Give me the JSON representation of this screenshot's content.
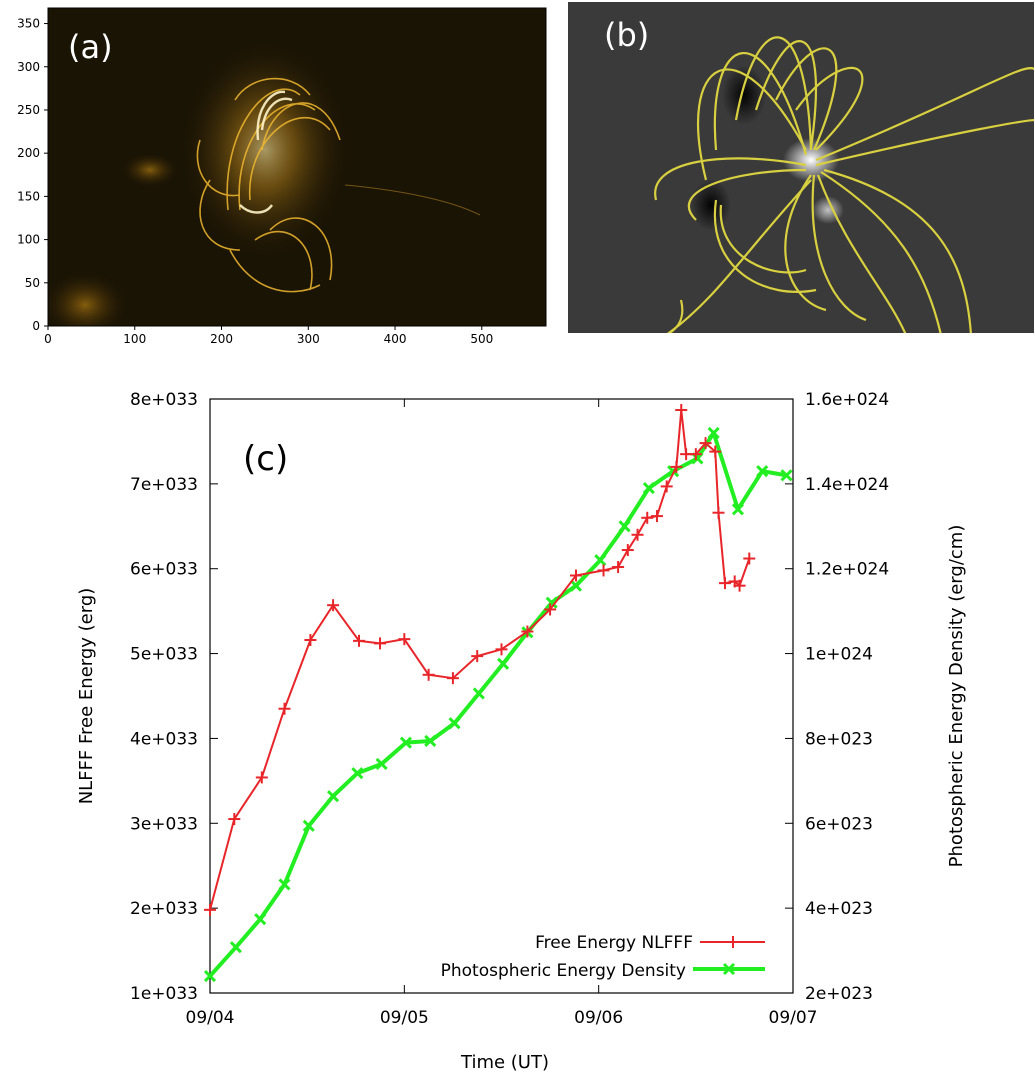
{
  "panel_a": {
    "label": "(a)",
    "x_ticks": [
      "0",
      "100",
      "200",
      "300",
      "400",
      "500"
    ],
    "y_ticks": [
      "0",
      "50",
      "100",
      "150",
      "200",
      "250",
      "300",
      "350"
    ]
  },
  "panel_b": {
    "label": "(b)"
  },
  "chart_data": {
    "type": "line",
    "panel_label": "(c)",
    "xlabel": "Time (UT)",
    "ylabel_left": "NLFFF Free Energy (erg)",
    "ylabel_right": "Photospheric Energy Density (erg/cm)",
    "x_ticks": [
      "09/04",
      "09/05",
      "09/06",
      "09/07"
    ],
    "xlim": [
      "09/04 00:00",
      "09/07 00:00"
    ],
    "y_left_ticks": [
      "1e+033",
      "2e+033",
      "3e+033",
      "4e+033",
      "5e+033",
      "6e+033",
      "7e+033",
      "8e+033"
    ],
    "y_left_lim": [
      1e+33,
      8e+33
    ],
    "y_right_ticks": [
      "2e+023",
      "4e+023",
      "6e+023",
      "8e+023",
      "1e+024",
      "1.2e+024",
      "1.4e+024",
      "1.6e+024"
    ],
    "y_right_lim": [
      2e+23,
      1.6e+24
    ],
    "legend_position": "bottom-right",
    "series": [
      {
        "name": "Free Energy NLFFF",
        "axis": "left",
        "color": "#e8262a",
        "marker": "+",
        "points": [
          [
            "09/04 00:00",
            1.98e+33
          ],
          [
            "09/04 03:00",
            3.05e+33
          ],
          [
            "09/04 06:24",
            3.54e+33
          ],
          [
            "09/04 09:12",
            4.35e+33
          ],
          [
            "09/04 12:24",
            5.16e+33
          ],
          [
            "09/04 15:12",
            5.57e+33
          ],
          [
            "09/04 18:24",
            5.15e+33
          ],
          [
            "09/04 21:00",
            5.12e+33
          ],
          [
            "09/05 00:00",
            5.17e+33
          ],
          [
            "09/05 03:00",
            4.75e+33
          ],
          [
            "09/05 06:00",
            4.71e+33
          ],
          [
            "09/05 09:00",
            4.97e+33
          ],
          [
            "09/05 12:00",
            5.05e+33
          ],
          [
            "09/05 15:12",
            5.26e+33
          ],
          [
            "09/05 18:00",
            5.52e+33
          ],
          [
            "09/05 21:12",
            5.92e+33
          ],
          [
            "09/06 00:36",
            5.98e+33
          ],
          [
            "09/06 02:24",
            6.02e+33
          ],
          [
            "09/06 03:36",
            6.22e+33
          ],
          [
            "09/06 04:48",
            6.4e+33
          ],
          [
            "09/06 06:00",
            6.6e+33
          ],
          [
            "09/06 07:12",
            6.62e+33
          ],
          [
            "09/06 08:24",
            6.97e+33
          ],
          [
            "09/06 09:36",
            7.2e+33
          ],
          [
            "09/06 10:12",
            7.87e+33
          ],
          [
            "09/06 10:48",
            7.35e+33
          ],
          [
            "09/06 12:00",
            7.35e+33
          ],
          [
            "09/06 13:12",
            7.48e+33
          ],
          [
            "09/06 14:24",
            7.38e+33
          ],
          [
            "09/06 14:48",
            6.66e+33
          ],
          [
            "09/06 15:36",
            5.83e+33
          ],
          [
            "09/06 16:48",
            5.85e+33
          ],
          [
            "09/06 17:24",
            5.8e+33
          ],
          [
            "09/06 18:36",
            6.12e+33
          ]
        ]
      },
      {
        "name": "Photospheric Energy Density",
        "axis": "right",
        "color": "#22ee22",
        "marker": "x",
        "points": [
          [
            "09/04 00:00",
            2.4e+23
          ],
          [
            "09/04 03:12",
            3.08e+23
          ],
          [
            "09/04 06:12",
            3.74e+23
          ],
          [
            "09/04 09:12",
            4.56e+23
          ],
          [
            "09/04 12:12",
            5.94e+23
          ],
          [
            "09/04 15:12",
            6.64e+23
          ],
          [
            "09/04 18:12",
            7.18e+23
          ],
          [
            "09/04 21:12",
            7.4e+23
          ],
          [
            "09/05 00:12",
            7.9e+23
          ],
          [
            "09/05 03:12",
            7.94e+23
          ],
          [
            "09/05 06:12",
            8.36e+23
          ],
          [
            "09/05 09:12",
            9.06e+23
          ],
          [
            "09/05 12:12",
            9.76e+23
          ],
          [
            "09/05 15:12",
            1.05e+24
          ],
          [
            "09/05 18:12",
            1.12e+24
          ],
          [
            "09/05 21:12",
            1.16e+24
          ],
          [
            "09/06 00:12",
            1.22e+24
          ],
          [
            "09/06 03:12",
            1.3e+24
          ],
          [
            "09/06 06:12",
            1.39e+24
          ],
          [
            "09/06 09:12",
            1.43e+24
          ],
          [
            "09/06 12:12",
            1.46e+24
          ],
          [
            "09/06 14:12",
            1.52e+24
          ],
          [
            "09/06 17:12",
            1.34e+24
          ],
          [
            "09/06 20:12",
            1.43e+24
          ],
          [
            "09/06 23:12",
            1.42e+24
          ]
        ]
      }
    ]
  }
}
